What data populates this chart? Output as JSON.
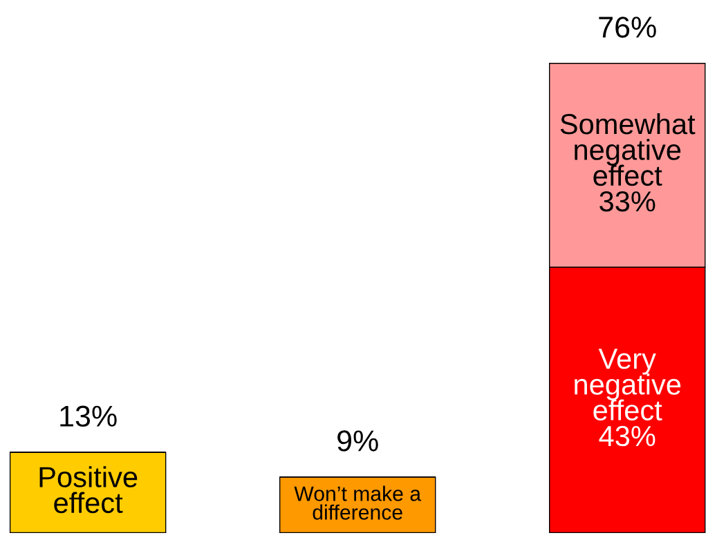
{
  "chart_data": {
    "type": "bar",
    "stacked": true,
    "categories": [
      null,
      null,
      null
    ],
    "series": [
      {
        "name": "Positive effect",
        "color": "#ffcc00",
        "values": [
          13,
          null,
          null
        ]
      },
      {
        "name": "Won’t make a difference",
        "color": "#ff9900",
        "values": [
          null,
          9,
          null
        ]
      },
      {
        "name": "Very negative effect",
        "color": "#ff0000",
        "values": [
          null,
          null,
          43
        ],
        "value_labels": [
          null,
          null,
          "43%"
        ]
      },
      {
        "name": "Somewhat negative effect",
        "color": "#ff9999",
        "values": [
          null,
          null,
          33
        ],
        "value_labels": [
          null,
          null,
          "33%"
        ]
      }
    ],
    "totals": [
      "13%",
      "9%",
      "76%"
    ]
  }
}
